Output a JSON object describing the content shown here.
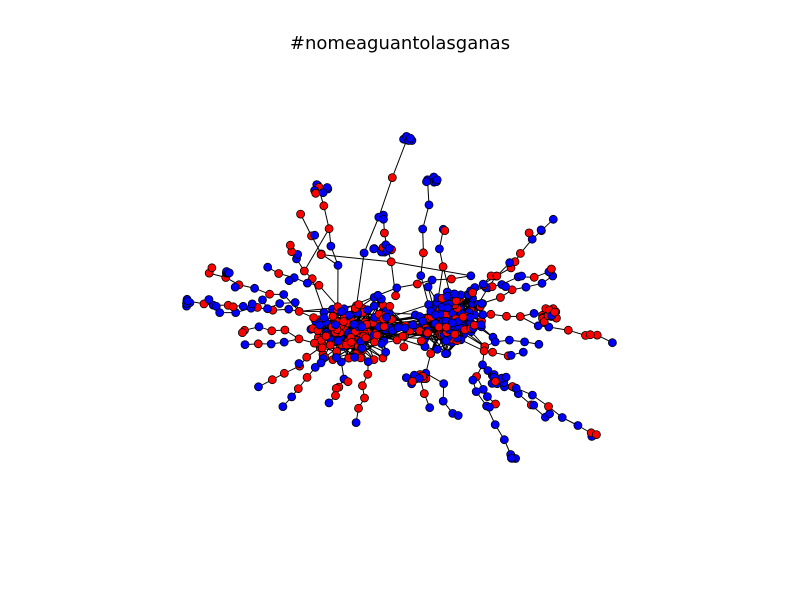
{
  "title": "#nomeaguantolasganas",
  "legend": [],
  "node_colors": {
    "group_a": "#0000ff",
    "group_b": "#ff0000"
  },
  "node_stroke": "#000000",
  "edge_color": "#000000",
  "background": "#ffffff"
}
